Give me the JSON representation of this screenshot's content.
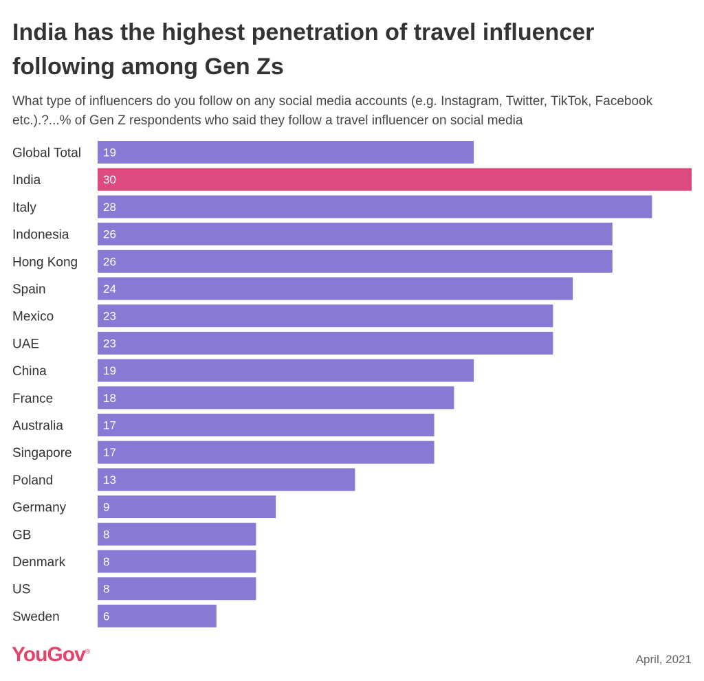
{
  "title": "India has the highest penetration of travel influencer following among Gen Zs",
  "subtitle": "What type of influencers do you follow on any social media accounts (e.g. Instagram, Twitter, TikTok, Facebook etc.).?...% of Gen Z respondents who said they follow a travel influencer on social media",
  "footer": {
    "brand": "YouGov",
    "date": "April, 2021"
  },
  "colors": {
    "bar": "#8779d4",
    "highlight": "#dc4a80"
  },
  "chart_data": {
    "type": "bar",
    "orientation": "horizontal",
    "categories": [
      "Global Total",
      "India",
      "Italy",
      "Indonesia",
      "Hong Kong",
      "Spain",
      "Mexico",
      "UAE",
      "China",
      "France",
      "Australia",
      "Singapore",
      "Poland",
      "Germany",
      "GB",
      "Denmark",
      "US",
      "Sweden"
    ],
    "values": [
      19,
      30,
      28,
      26,
      26,
      24,
      23,
      23,
      19,
      18,
      17,
      17,
      13,
      9,
      8,
      8,
      8,
      6
    ],
    "highlight": "India",
    "xlim": [
      0,
      30
    ],
    "grid": false,
    "legend": "none"
  }
}
